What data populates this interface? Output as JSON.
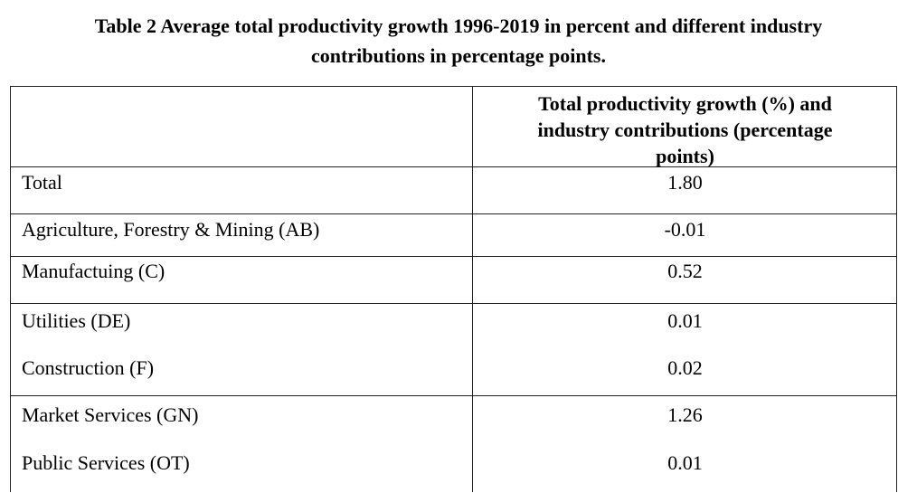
{
  "caption": {
    "line1": "Table 2 Average total productivity growth 1996-2019 in percent and different industry",
    "line2": "contributions in percentage points."
  },
  "table": {
    "header": {
      "col1": "",
      "col2_line1": "Total productivity growth (%) and",
      "col2_line2": "industry contributions (percentage",
      "col2_line3": "points)"
    },
    "rows": [
      {
        "label": "Total",
        "value": "1.80"
      },
      {
        "label": "Agriculture, Forestry & Mining (AB)",
        "value": "-0.01"
      },
      {
        "label": "Manufactuing (C)",
        "value": "0.52"
      },
      {
        "label": "Utilities (DE)",
        "value": "0.01"
      },
      {
        "label": "Construction (F)",
        "value": "0.02"
      },
      {
        "label": "Market Services (GN)",
        "value": "1.26"
      },
      {
        "label": "Public Services (OT)",
        "value": "0.01"
      }
    ]
  }
}
